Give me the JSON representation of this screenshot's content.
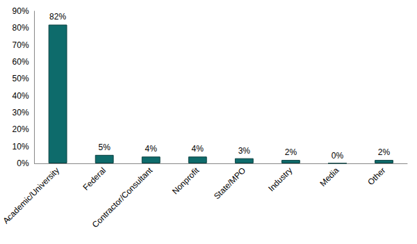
{
  "chart_data": {
    "type": "bar",
    "categories": [
      "Academic/University",
      "Federal",
      "Contractor/Consultant",
      "Nonprofit",
      "State/MPO",
      "Industry",
      "Media",
      "Other"
    ],
    "values": [
      82,
      5,
      4,
      4,
      3,
      2,
      0,
      2
    ],
    "value_labels": [
      "82%",
      "5%",
      "4%",
      "4%",
      "3%",
      "2%",
      "0%",
      "2%"
    ],
    "color": "#0e6b6b",
    "ylim": [
      0,
      90
    ],
    "yticks": [
      {
        "value": 0,
        "label": "0%"
      },
      {
        "value": 10,
        "label": "10%"
      },
      {
        "value": 20,
        "label": "20%"
      },
      {
        "value": 30,
        "label": "30%"
      },
      {
        "value": 40,
        "label": "40%"
      },
      {
        "value": 50,
        "label": "50%"
      },
      {
        "value": 60,
        "label": "60%"
      },
      {
        "value": 70,
        "label": "70%"
      },
      {
        "value": 80,
        "label": "80%"
      },
      {
        "value": 90,
        "label": "90%"
      }
    ],
    "grid": false,
    "data_labels": true
  }
}
